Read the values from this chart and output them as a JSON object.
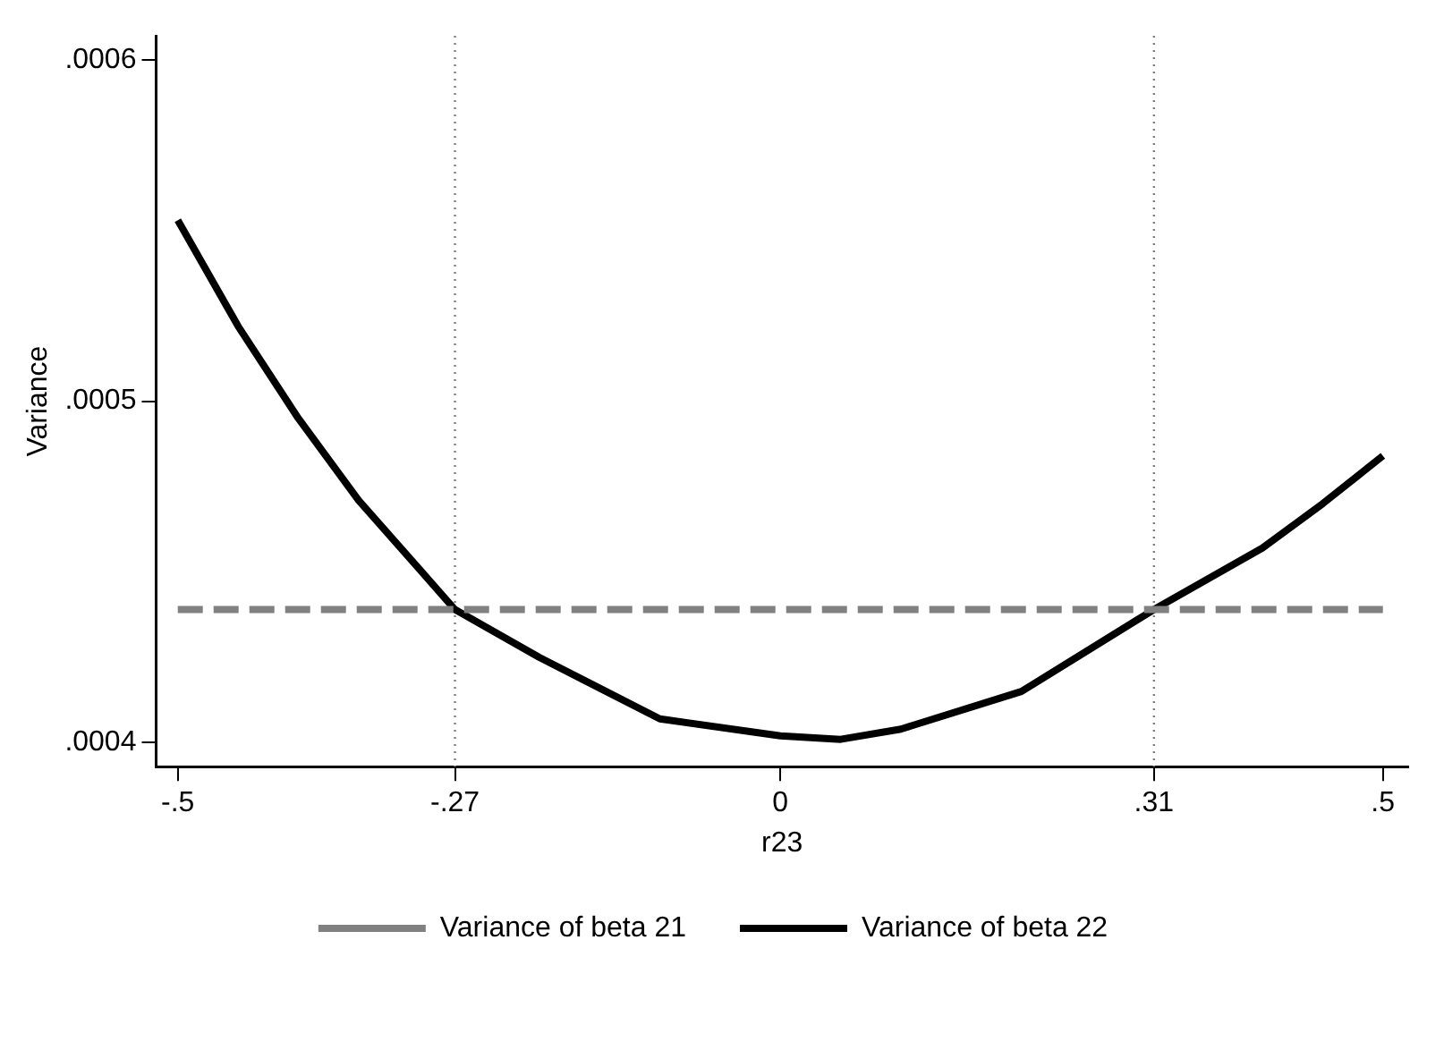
{
  "chart_data": {
    "type": "line",
    "xlabel": "r23",
    "ylabel": "Variance",
    "x": [
      -0.5,
      -0.45,
      -0.4,
      -0.35,
      -0.3,
      -0.27,
      -0.2,
      -0.1,
      0,
      0.05,
      0.1,
      0.2,
      0.31,
      0.4,
      0.45,
      0.5
    ],
    "series": [
      {
        "name": "Variance of beta 21",
        "color": "#808080",
        "line_style": "dashed",
        "values": [
          0.000439,
          0.000439,
          0.000439,
          0.000439,
          0.000439,
          0.000439,
          0.000439,
          0.000439,
          0.000439,
          0.000439,
          0.000439,
          0.000439,
          0.000439,
          0.000439,
          0.000439,
          0.000439
        ]
      },
      {
        "name": "Variance of beta 22",
        "color": "#000000",
        "line_style": "solid",
        "values": [
          0.000553,
          0.000522,
          0.000495,
          0.000471,
          0.000451,
          0.000439,
          0.000425,
          0.000407,
          0.000402,
          0.000401,
          0.000404,
          0.000415,
          0.000439,
          0.000457,
          0.00047,
          0.000484
        ]
      }
    ],
    "xlim": [
      -0.518,
      0.521
    ],
    "ylim": [
      0.000393,
      0.000607
    ],
    "xticks": [
      {
        "value": -0.5,
        "label": "-.5"
      },
      {
        "value": -0.27,
        "label": "-.27"
      },
      0,
      {
        "value": 0.31,
        "label": ".31"
      },
      {
        "value": 0.5,
        "label": ".5"
      }
    ],
    "yticks": [
      {
        "value": 0.0004,
        "label": ".0004"
      },
      {
        "value": 0.0005,
        "label": ".0005"
      },
      {
        "value": 0.0006,
        "label": ".0006"
      }
    ],
    "ref_lines": [
      {
        "axis": "x",
        "value": -0.27,
        "color": "#808080",
        "line_style": "dotted"
      },
      {
        "axis": "x",
        "value": 0.31,
        "color": "#808080",
        "line_style": "dotted"
      }
    ],
    "grid": false,
    "legend": "bottom",
    "marker": "none"
  }
}
